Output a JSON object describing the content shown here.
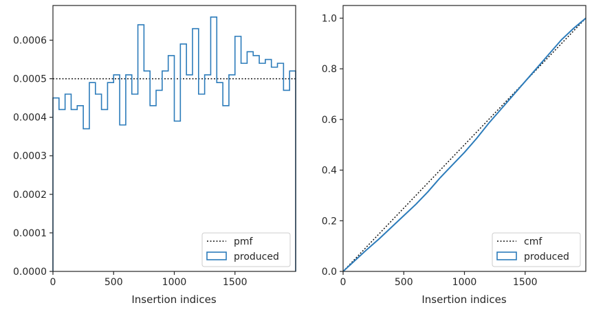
{
  "chart_data": [
    {
      "type": "histogram",
      "xlabel": "Insertion indices",
      "ylabel": "",
      "xlim": [
        0,
        2000
      ],
      "ylim": [
        0,
        0.00069
      ],
      "xticks": [
        0,
        500,
        1000,
        1500
      ],
      "yticks": [
        0,
        0.0001,
        0.0002,
        0.0003,
        0.0004,
        0.0005,
        0.0006
      ],
      "ytick_labels": [
        "0.0000",
        "0.0001",
        "0.0002",
        "0.0003",
        "0.0004",
        "0.0005",
        "0.0006"
      ],
      "bin_width": 50,
      "histogram_values": [
        0.00045,
        0.00042,
        0.00046,
        0.00042,
        0.00043,
        0.00037,
        0.00049,
        0.00046,
        0.00042,
        0.00049,
        0.00051,
        0.00038,
        0.00051,
        0.00046,
        0.00064,
        0.00052,
        0.00043,
        0.00047,
        0.00052,
        0.00056,
        0.00039,
        0.00059,
        0.00051,
        0.00063,
        0.00046,
        0.00051,
        0.00066,
        0.00049,
        0.00043,
        0.00051,
        0.00061,
        0.00054,
        0.00057,
        0.00056,
        0.00054,
        0.00055,
        0.00053,
        0.00054,
        0.00047,
        0.00052
      ],
      "reference_line": {
        "label": "pmf",
        "value": 0.0005,
        "style": "dotted"
      },
      "legend": {
        "position": "lower-right",
        "entries": [
          "pmf",
          "produced"
        ]
      },
      "series": [
        {
          "name": "produced",
          "style": "step"
        }
      ],
      "colors": {
        "produced": "#2b7bba",
        "reference": "#111111",
        "axis": "#262626"
      }
    },
    {
      "type": "line",
      "xlabel": "Insertion indices",
      "ylabel": "",
      "xlim": [
        0,
        2000
      ],
      "ylim": [
        0,
        1.05
      ],
      "xticks": [
        0,
        500,
        1000,
        1500
      ],
      "yticks": [
        0,
        0.2,
        0.4,
        0.6,
        0.8,
        1.0
      ],
      "ytick_labels": [
        "0.0",
        "0.2",
        "0.4",
        "0.6",
        "0.8",
        "1.0"
      ],
      "reference_line": {
        "label": "cmf",
        "from": [
          0,
          0
        ],
        "to": [
          2000,
          1.0
        ],
        "style": "dotted"
      },
      "series": [
        {
          "name": "produced",
          "x": [
            0,
            100,
            200,
            300,
            400,
            500,
            600,
            700,
            800,
            900,
            1000,
            1100,
            1200,
            1300,
            1400,
            1500,
            1600,
            1700,
            1800,
            1900,
            2000
          ],
          "y": [
            0,
            0.044,
            0.088,
            0.13,
            0.175,
            0.22,
            0.265,
            0.315,
            0.37,
            0.42,
            0.47,
            0.525,
            0.585,
            0.64,
            0.695,
            0.75,
            0.805,
            0.86,
            0.915,
            0.96,
            1.0
          ]
        }
      ],
      "legend": {
        "position": "lower-right",
        "entries": [
          "cmf",
          "produced"
        ]
      },
      "colors": {
        "produced": "#2b7bba",
        "reference": "#111111",
        "axis": "#262626"
      }
    }
  ]
}
